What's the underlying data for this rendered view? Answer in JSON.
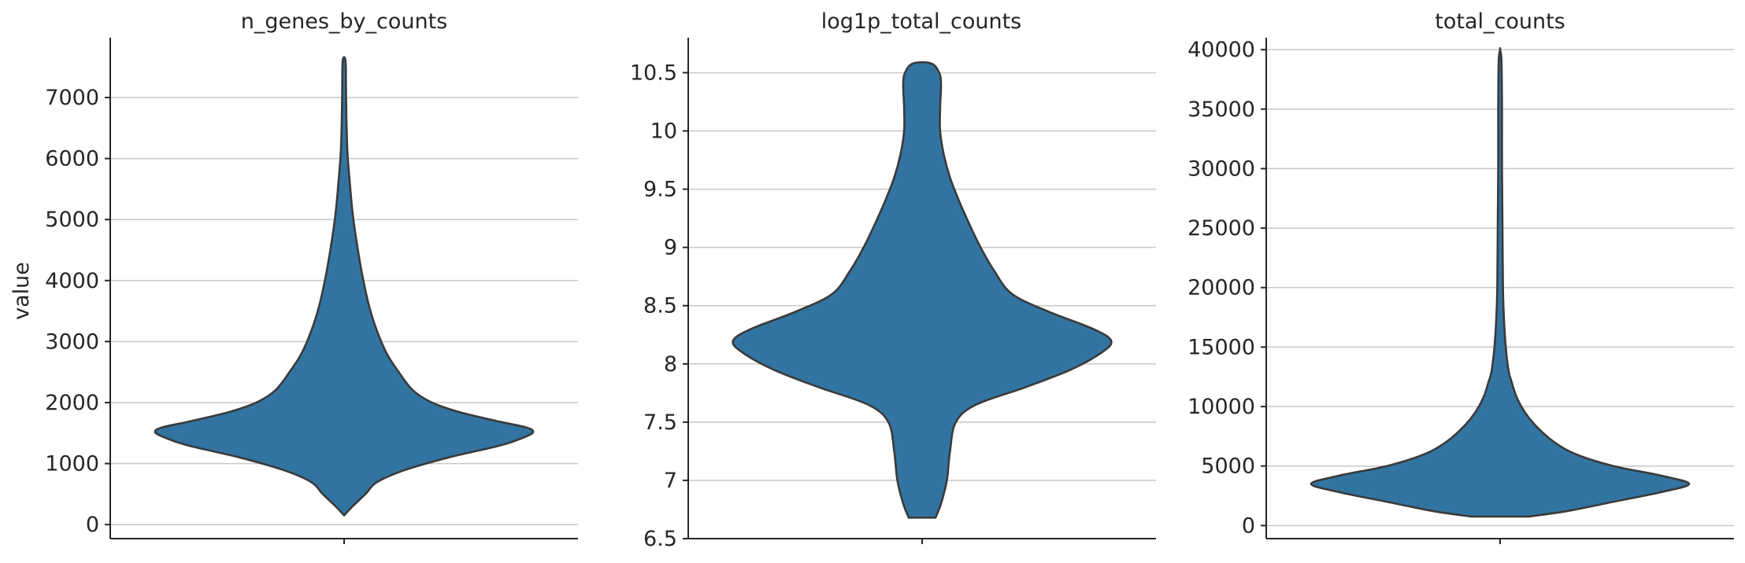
{
  "chart_data": [
    {
      "type": "violin",
      "title": "n_genes_by_counts",
      "ylabel": "value",
      "ylim": [
        -230,
        7980
      ],
      "yticks": [
        0,
        1000,
        2000,
        3000,
        4000,
        5000,
        6000,
        7000
      ],
      "grid": true,
      "color": "#3274a1",
      "profile": [
        [
          150,
          0.0
        ],
        [
          300,
          0.18
        ],
        [
          500,
          0.45
        ],
        [
          700,
          0.7
        ],
        [
          900,
          1.3
        ],
        [
          1100,
          2.2
        ],
        [
          1300,
          3.3
        ],
        [
          1450,
          3.85
        ],
        [
          1530,
          3.98
        ],
        [
          1600,
          3.8
        ],
        [
          1700,
          3.2
        ],
        [
          1850,
          2.4
        ],
        [
          2000,
          1.85
        ],
        [
          2200,
          1.45
        ],
        [
          2500,
          1.15
        ],
        [
          2800,
          0.9
        ],
        [
          3200,
          0.68
        ],
        [
          3600,
          0.52
        ],
        [
          4100,
          0.38
        ],
        [
          4600,
          0.27
        ],
        [
          5100,
          0.18
        ],
        [
          5600,
          0.12
        ],
        [
          6100,
          0.07
        ],
        [
          6600,
          0.05
        ],
        [
          7100,
          0.04
        ],
        [
          7600,
          0.03
        ]
      ]
    },
    {
      "type": "violin",
      "title": "log1p_total_counts",
      "ylabel": "",
      "ylim": [
        6.5,
        10.8
      ],
      "yticks": [
        6.5,
        7.0,
        7.5,
        8.0,
        8.5,
        9.0,
        9.5,
        10.0,
        10.5
      ],
      "grid": true,
      "color": "#3274a1",
      "profile": [
        [
          6.68,
          0.3
        ],
        [
          6.8,
          0.42
        ],
        [
          7.0,
          0.55
        ],
        [
          7.25,
          0.62
        ],
        [
          7.5,
          0.75
        ],
        [
          7.65,
          1.2
        ],
        [
          7.8,
          2.3
        ],
        [
          7.95,
          3.3
        ],
        [
          8.1,
          4.0
        ],
        [
          8.2,
          4.2
        ],
        [
          8.3,
          3.8
        ],
        [
          8.45,
          2.8
        ],
        [
          8.6,
          2.0
        ],
        [
          8.8,
          1.6
        ],
        [
          9.0,
          1.3
        ],
        [
          9.2,
          1.05
        ],
        [
          9.4,
          0.82
        ],
        [
          9.6,
          0.62
        ],
        [
          9.8,
          0.48
        ],
        [
          10.0,
          0.4
        ],
        [
          10.2,
          0.4
        ],
        [
          10.4,
          0.42
        ],
        [
          10.5,
          0.38
        ],
        [
          10.58,
          0.2
        ]
      ]
    },
    {
      "type": "violin",
      "title": "total_counts",
      "ylabel": "",
      "ylim": [
        -1100,
        41000
      ],
      "yticks": [
        0,
        5000,
        10000,
        15000,
        20000,
        25000,
        30000,
        35000,
        40000
      ],
      "grid": true,
      "color": "#3274a1",
      "profile": [
        [
          750,
          0.6
        ],
        [
          1200,
          1.4
        ],
        [
          2000,
          2.4
        ],
        [
          2800,
          3.4
        ],
        [
          3500,
          4.0
        ],
        [
          4200,
          3.4
        ],
        [
          5000,
          2.4
        ],
        [
          6000,
          1.6
        ],
        [
          7000,
          1.15
        ],
        [
          8000,
          0.85
        ],
        [
          9000,
          0.62
        ],
        [
          10000,
          0.45
        ],
        [
          11000,
          0.33
        ],
        [
          12000,
          0.25
        ],
        [
          13000,
          0.18
        ],
        [
          15000,
          0.12
        ],
        [
          17500,
          0.08
        ],
        [
          20000,
          0.06
        ],
        [
          25000,
          0.05
        ],
        [
          30000,
          0.04
        ],
        [
          35000,
          0.04
        ],
        [
          39000,
          0.03
        ],
        [
          40000,
          0.0
        ]
      ]
    }
  ]
}
